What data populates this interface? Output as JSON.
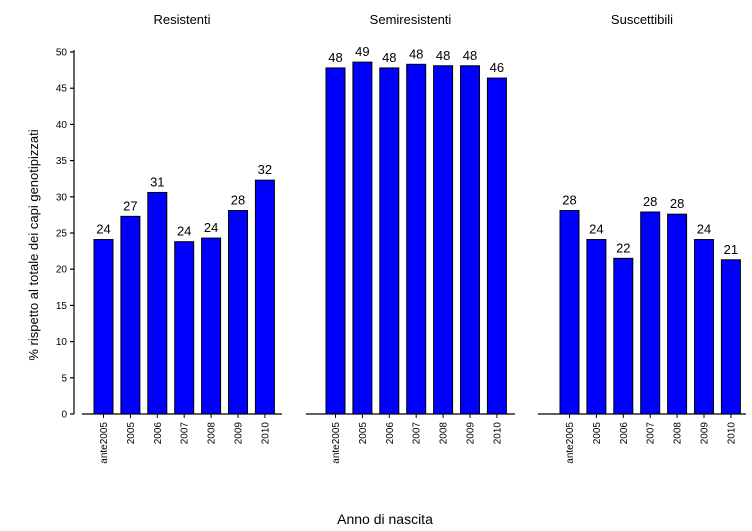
{
  "chart_data": {
    "type": "bar",
    "ylabel": "% rispetto al totale dei capi genotipizzati",
    "xlabel": "Anno di nascita",
    "ylim": [
      0,
      50
    ],
    "yticks": [
      0,
      5,
      10,
      15,
      20,
      25,
      30,
      35,
      40,
      45,
      50
    ],
    "grid": false,
    "bar_color": "#0000ff",
    "categories": [
      "ante2005",
      "2005",
      "2006",
      "2007",
      "2008",
      "2009",
      "2010"
    ],
    "panels": [
      {
        "title": "Resistenti",
        "values": [
          24.1,
          27.3,
          30.6,
          23.8,
          24.3,
          28.1,
          32.3
        ],
        "labels": [
          "24",
          "27",
          "31",
          "24",
          "24",
          "28",
          "32"
        ]
      },
      {
        "title": "Semiresistenti",
        "values": [
          47.8,
          48.6,
          47.8,
          48.3,
          48.1,
          48.1,
          46.4
        ],
        "labels": [
          "48",
          "49",
          "48",
          "48",
          "48",
          "48",
          "46"
        ]
      },
      {
        "title": "Suscettibili",
        "values": [
          28.1,
          24.1,
          21.5,
          27.9,
          27.6,
          24.1,
          21.3
        ],
        "labels": [
          "28",
          "24",
          "22",
          "28",
          "28",
          "24",
          "21"
        ]
      }
    ]
  }
}
